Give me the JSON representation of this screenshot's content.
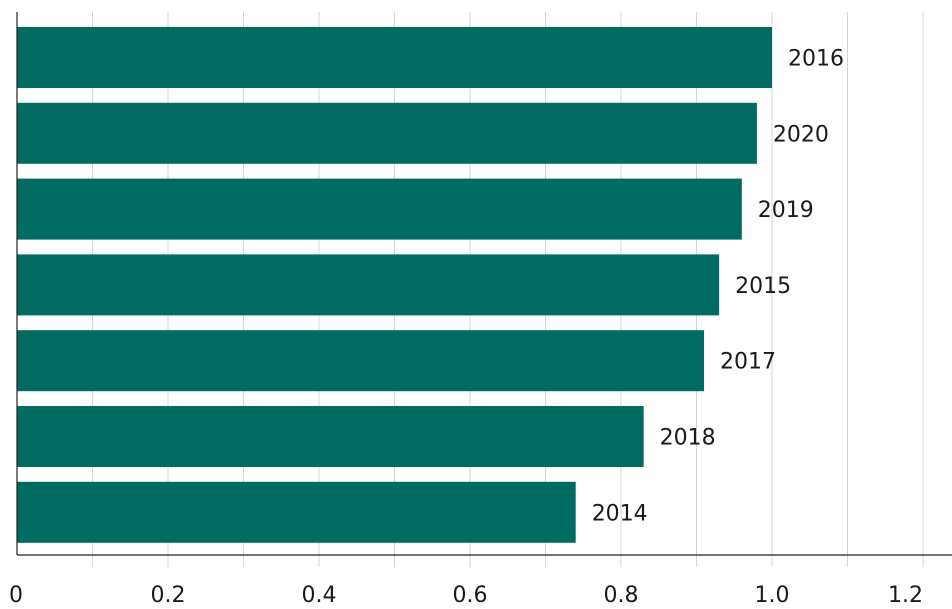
{
  "chart_data": {
    "type": "bar",
    "orientation": "horizontal",
    "categories": [
      "2016",
      "2020",
      "2019",
      "2015",
      "2017",
      "2018",
      "2014"
    ],
    "values": [
      1.0,
      0.98,
      0.96,
      0.93,
      0.91,
      0.83,
      0.74
    ],
    "title": "",
    "xlabel": "",
    "ylabel": "",
    "xlim": [
      0,
      1.2
    ],
    "xticks": [
      0,
      0.1,
      0.2,
      0.3,
      0.4,
      0.5,
      0.6,
      0.7,
      0.8,
      0.9,
      1.0,
      1.1,
      1.2
    ],
    "xtick_labels": {
      "0": "0",
      "0.2": "0.2",
      "0.4": "0.4",
      "0.6": "0.6",
      "0.8": "0.8",
      "1": "1.0",
      "1.2": "1.2"
    },
    "grid": true,
    "legend": false,
    "bar_color": "#006b60",
    "grid_color": "#d4d4d4"
  }
}
